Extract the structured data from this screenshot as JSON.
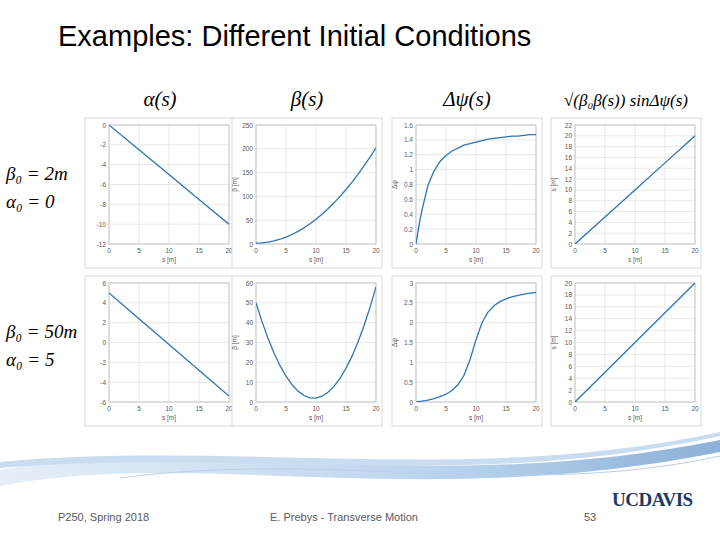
{
  "slide": {
    "title": "Examples: Different Initial Conditions",
    "column_headers": [
      "α(s)",
      "β(s)",
      "Δψ(s)",
      "√(β₀β(s)) sinΔψ(s)"
    ],
    "row_labels": [
      [
        "β₀ = 2m",
        "α₀ = 0"
      ],
      [
        "β₀ = 50m",
        "α₀ = 5"
      ]
    ],
    "footer": {
      "left": "P250, Spring 2018",
      "center": "E. Prebys - Transverse Motion",
      "page": "53",
      "logo": "UCDAVIS"
    }
  },
  "chart_data": [
    {
      "type": "line",
      "x_label": "s [m]",
      "x": [
        0,
        5,
        10,
        15,
        20
      ],
      "values": [
        0,
        -2.5,
        -5,
        -7.5,
        -10
      ],
      "color": "#2e75b6",
      "xlim": [
        0,
        20
      ],
      "xticks": [
        0,
        5,
        10,
        15,
        20
      ],
      "ylim": [
        -12,
        0
      ],
      "yticks": [
        -12,
        -10,
        -8,
        -6,
        -4,
        -2,
        0
      ],
      "grid": true
    },
    {
      "type": "line",
      "x_label": "s [m]",
      "y_label": "β [m]",
      "x": [
        0,
        1,
        2,
        3,
        4,
        5,
        6,
        7,
        8,
        9,
        10,
        11,
        12,
        13,
        14,
        15,
        16,
        17,
        18,
        19,
        20
      ],
      "values": [
        2,
        2.5,
        4,
        6.5,
        10,
        14.5,
        20,
        26.5,
        34,
        42.5,
        52,
        62.5,
        74,
        86.5,
        100,
        114.5,
        130,
        146.5,
        164,
        182.5,
        202
      ],
      "color": "#2e75b6",
      "xlim": [
        0,
        20
      ],
      "xticks": [
        0,
        5,
        10,
        15,
        20
      ],
      "ylim": [
        0,
        250
      ],
      "yticks": [
        0,
        50,
        100,
        150,
        200,
        250
      ],
      "grid": true
    },
    {
      "type": "line",
      "x_label": "s [m]",
      "y_label": "Δψ",
      "x": [
        0,
        0.5,
        1,
        2,
        3,
        4,
        5,
        6,
        7,
        8,
        9,
        10,
        11,
        12,
        13,
        14,
        15,
        16,
        17,
        18,
        19,
        20
      ],
      "values": [
        0,
        0.25,
        0.46,
        0.79,
        0.98,
        1.11,
        1.19,
        1.25,
        1.29,
        1.33,
        1.35,
        1.37,
        1.39,
        1.41,
        1.42,
        1.43,
        1.44,
        1.45,
        1.45,
        1.46,
        1.47,
        1.47
      ],
      "color": "#2e75b6",
      "xlim": [
        0,
        20
      ],
      "xticks": [
        0,
        5,
        10,
        15,
        20
      ],
      "ylim": [
        0,
        1.6
      ],
      "yticks": [
        0,
        0.2,
        0.4,
        0.6,
        0.8,
        1,
        1.2,
        1.4,
        1.6
      ],
      "grid": true
    },
    {
      "type": "line",
      "x_label": "s [m]",
      "y_label": "s [m]",
      "x": [
        0,
        5,
        10,
        15,
        20
      ],
      "values": [
        0,
        5,
        10,
        15,
        20
      ],
      "color": "#2e75b6",
      "xlim": [
        0,
        20
      ],
      "xticks": [
        0,
        5,
        10,
        15,
        20
      ],
      "ylim": [
        0,
        22
      ],
      "yticks": [
        0,
        2,
        4,
        6,
        8,
        10,
        12,
        14,
        16,
        18,
        20,
        22
      ],
      "grid": true
    },
    {
      "type": "line",
      "x_label": "s [m]",
      "x": [
        0,
        5,
        10,
        15,
        20
      ],
      "values": [
        5,
        2.4,
        -0.2,
        -2.8,
        -5.4
      ],
      "color": "#2e75b6",
      "xlim": [
        0,
        20
      ],
      "xticks": [
        0,
        5,
        10,
        15,
        20
      ],
      "ylim": [
        -6,
        6
      ],
      "yticks": [
        -6,
        -4,
        -2,
        0,
        2,
        4,
        6
      ],
      "grid": true
    },
    {
      "type": "line",
      "x_label": "s [m]",
      "y_label": "β [m]",
      "x": [
        0,
        1,
        2,
        3,
        4,
        5,
        6,
        7,
        8,
        9,
        10,
        11,
        12,
        13,
        14,
        15,
        16,
        17,
        18,
        19,
        20
      ],
      "values": [
        50,
        40.52,
        32.08,
        24.68,
        18.32,
        13,
        8.72,
        5.48,
        3.28,
        2.12,
        2,
        2.92,
        4.88,
        7.88,
        11.92,
        17,
        23.12,
        30.28,
        38.48,
        47.72,
        58
      ],
      "color": "#2e75b6",
      "xlim": [
        0,
        20
      ],
      "xticks": [
        0,
        5,
        10,
        15,
        20
      ],
      "ylim": [
        0,
        60
      ],
      "yticks": [
        0,
        10,
        20,
        30,
        40,
        50,
        60
      ],
      "grid": true
    },
    {
      "type": "line",
      "x_label": "s [m]",
      "y_label": "Δψ",
      "x": [
        0,
        1,
        2,
        3,
        4,
        5,
        6,
        7,
        8,
        9,
        10,
        11,
        12,
        13,
        14,
        15,
        16,
        17,
        18,
        19,
        20
      ],
      "values": [
        0,
        0.022,
        0.05,
        0.085,
        0.133,
        0.197,
        0.291,
        0.437,
        0.675,
        1.064,
        1.571,
        1.998,
        2.266,
        2.428,
        2.531,
        2.602,
        2.652,
        2.69,
        2.719,
        2.743,
        2.761
      ],
      "color": "#2e75b6",
      "xlim": [
        0,
        20
      ],
      "xticks": [
        0,
        5,
        10,
        15,
        20
      ],
      "ylim": [
        0,
        3
      ],
      "yticks": [
        0,
        0.5,
        1,
        1.5,
        2,
        2.5,
        3
      ],
      "grid": true
    },
    {
      "type": "line",
      "x_label": "s [m]",
      "y_label": "s [m]",
      "x": [
        0,
        5,
        10,
        15,
        20
      ],
      "values": [
        0,
        5,
        10,
        15,
        20
      ],
      "color": "#2e75b6",
      "xlim": [
        0,
        20
      ],
      "xticks": [
        0,
        5,
        10,
        15,
        20
      ],
      "ylim": [
        0,
        20
      ],
      "yticks": [
        0,
        2,
        4,
        6,
        8,
        10,
        12,
        14,
        16,
        18,
        20
      ],
      "grid": true
    }
  ]
}
